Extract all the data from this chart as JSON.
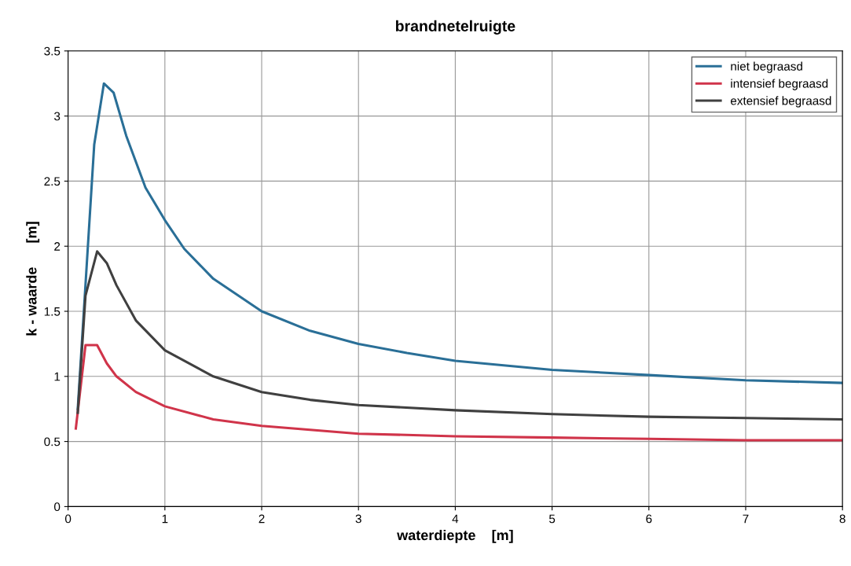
{
  "chart_data": {
    "type": "line",
    "title": "brandnetelruigte",
    "xlabel": "waterdiepte    [m]",
    "ylabel": "k - waarde      [m]",
    "xlim": [
      0,
      8
    ],
    "xticks": [
      0,
      1,
      2,
      3,
      4,
      5,
      6,
      7,
      8
    ],
    "ylim": [
      0,
      3.5
    ],
    "yticks": [
      0,
      0.5,
      1,
      1.5,
      2,
      2.5,
      3,
      3.5
    ],
    "grid": true,
    "legend": "top right",
    "marker": "none",
    "line_style": "solid",
    "series": [
      {
        "name": "niet begraasd",
        "color": "#2a6f97",
        "x": [
          0.1,
          0.27,
          0.37,
          0.47,
          0.6,
          0.8,
          1.0,
          1.2,
          1.5,
          2,
          2.5,
          3,
          3.5,
          4,
          5,
          6,
          7,
          8
        ],
        "values": [
          0.75,
          2.78,
          3.25,
          3.18,
          2.85,
          2.45,
          2.2,
          1.98,
          1.75,
          1.5,
          1.35,
          1.25,
          1.18,
          1.12,
          1.05,
          1.01,
          0.97,
          0.95
        ]
      },
      {
        "name": "intensief begraasd",
        "color": "#d0344a",
        "x": [
          0.08,
          0.18,
          0.3,
          0.4,
          0.5,
          0.7,
          1,
          1.5,
          2,
          3,
          4,
          5,
          6,
          7,
          8
        ],
        "values": [
          0.6,
          1.24,
          1.24,
          1.1,
          1.0,
          0.88,
          0.77,
          0.67,
          0.62,
          0.56,
          0.54,
          0.53,
          0.52,
          0.51,
          0.51
        ]
      },
      {
        "name": "extensief begraasd",
        "color": "#404040",
        "x": [
          0.1,
          0.18,
          0.3,
          0.4,
          0.5,
          0.7,
          1,
          1.5,
          2,
          2.5,
          3,
          4,
          5,
          6,
          7,
          8
        ],
        "values": [
          0.72,
          1.62,
          1.96,
          1.87,
          1.7,
          1.43,
          1.2,
          1.0,
          0.88,
          0.82,
          0.78,
          0.74,
          0.71,
          0.69,
          0.68,
          0.67
        ]
      }
    ]
  }
}
